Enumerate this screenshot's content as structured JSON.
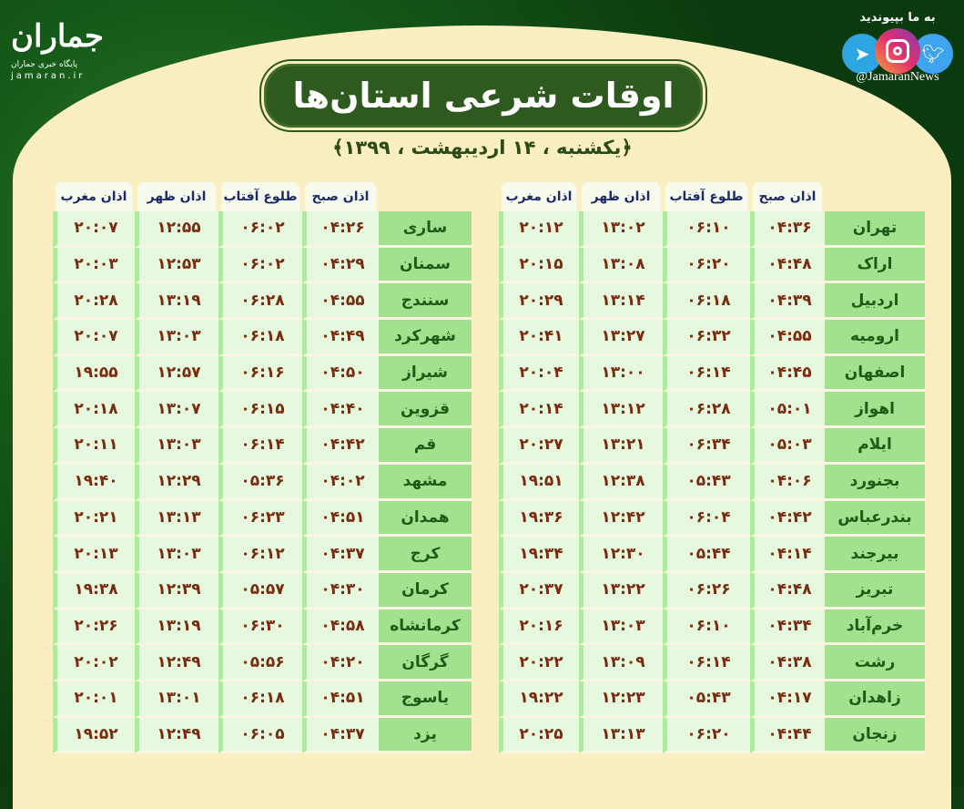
{
  "logo": {
    "mark": "جماران",
    "subtitle": "پایگاه خبری جماران",
    "url": "jamaran.ir"
  },
  "social": {
    "join": "به ما بپیوندید",
    "handle": "@JamaranNews",
    "icons": [
      "telegram-icon",
      "instagram-icon",
      "twitter-icon"
    ]
  },
  "title": "اوقات شرعی استان‌ها",
  "subtitle": "﴿یکشنبه ، ۱۴ اردیبهشت ، ۱۳۹۹﴾",
  "headers": [
    "اذان صبح",
    "طلوع آفتاب",
    "اذان ظهر",
    "اذان مغرب"
  ],
  "colors": {
    "background": "#0f3d12",
    "panel": "#fbeec0",
    "title_bg": "#2f5a1f",
    "city_bg": "#a2e28f",
    "cell_bg": "#e6f9de",
    "time_text": "#7a2b0f",
    "header_text": "#1b2a6e"
  },
  "right_table": [
    {
      "city": "تهران",
      "fajr": "۰۴:۳۶",
      "sunrise": "۰۶:۱۰",
      "dhuhr": "۱۳:۰۲",
      "maghrib": "۲۰:۱۲"
    },
    {
      "city": "اراک",
      "fajr": "۰۴:۴۸",
      "sunrise": "۰۶:۲۰",
      "dhuhr": "۱۳:۰۸",
      "maghrib": "۲۰:۱۵"
    },
    {
      "city": "اردبیل",
      "fajr": "۰۴:۳۹",
      "sunrise": "۰۶:۱۸",
      "dhuhr": "۱۳:۱۴",
      "maghrib": "۲۰:۲۹"
    },
    {
      "city": "ارومیه",
      "fajr": "۰۴:۵۵",
      "sunrise": "۰۶:۳۲",
      "dhuhr": "۱۳:۲۷",
      "maghrib": "۲۰:۴۱"
    },
    {
      "city": "اصفهان",
      "fajr": "۰۴:۴۵",
      "sunrise": "۰۶:۱۴",
      "dhuhr": "۱۳:۰۰",
      "maghrib": "۲۰:۰۴"
    },
    {
      "city": "اهواز",
      "fajr": "۰۵:۰۱",
      "sunrise": "۰۶:۲۸",
      "dhuhr": "۱۳:۱۲",
      "maghrib": "۲۰:۱۴"
    },
    {
      "city": "ایلام",
      "fajr": "۰۵:۰۳",
      "sunrise": "۰۶:۳۴",
      "dhuhr": "۱۳:۲۱",
      "maghrib": "۲۰:۲۷"
    },
    {
      "city": "بجنورد",
      "fajr": "۰۴:۰۶",
      "sunrise": "۰۵:۴۳",
      "dhuhr": "۱۲:۳۸",
      "maghrib": "۱۹:۵۱"
    },
    {
      "city": "بندرعباس",
      "fajr": "۰۴:۴۲",
      "sunrise": "۰۶:۰۴",
      "dhuhr": "۱۲:۴۲",
      "maghrib": "۱۹:۳۶"
    },
    {
      "city": "بیرجند",
      "fajr": "۰۴:۱۴",
      "sunrise": "۰۵:۴۴",
      "dhuhr": "۱۲:۳۰",
      "maghrib": "۱۹:۳۴"
    },
    {
      "city": "تبریز",
      "fajr": "۰۴:۴۸",
      "sunrise": "۰۶:۲۶",
      "dhuhr": "۱۳:۲۲",
      "maghrib": "۲۰:۳۷"
    },
    {
      "city": "خرم‌آباد",
      "fajr": "۰۴:۳۴",
      "sunrise": "۰۶:۱۰",
      "dhuhr": "۱۳:۰۳",
      "maghrib": "۲۰:۱۶"
    },
    {
      "city": "رشت",
      "fajr": "۰۴:۳۸",
      "sunrise": "۰۶:۱۴",
      "dhuhr": "۱۳:۰۹",
      "maghrib": "۲۰:۲۲"
    },
    {
      "city": "زاهدان",
      "fajr": "۰۴:۱۷",
      "sunrise": "۰۵:۴۳",
      "dhuhr": "۱۲:۲۳",
      "maghrib": "۱۹:۲۲"
    },
    {
      "city": "زنجان",
      "fajr": "۰۴:۴۴",
      "sunrise": "۰۶:۲۰",
      "dhuhr": "۱۳:۱۳",
      "maghrib": "۲۰:۲۵"
    }
  ],
  "left_table": [
    {
      "city": "ساری",
      "fajr": "۰۴:۲۶",
      "sunrise": "۰۶:۰۲",
      "dhuhr": "۱۲:۵۵",
      "maghrib": "۲۰:۰۷"
    },
    {
      "city": "سمنان",
      "fajr": "۰۴:۲۹",
      "sunrise": "۰۶:۰۲",
      "dhuhr": "۱۲:۵۳",
      "maghrib": "۲۰:۰۳"
    },
    {
      "city": "سنندج",
      "fajr": "۰۴:۵۵",
      "sunrise": "۰۶:۲۸",
      "dhuhr": "۱۳:۱۹",
      "maghrib": "۲۰:۲۸"
    },
    {
      "city": "شهرکرد",
      "fajr": "۰۴:۴۹",
      "sunrise": "۰۶:۱۸",
      "dhuhr": "۱۳:۰۳",
      "maghrib": "۲۰:۰۷"
    },
    {
      "city": "شیراز",
      "fajr": "۰۴:۵۰",
      "sunrise": "۰۶:۱۶",
      "dhuhr": "۱۲:۵۷",
      "maghrib": "۱۹:۵۵"
    },
    {
      "city": "قزوین",
      "fajr": "۰۴:۴۰",
      "sunrise": "۰۶:۱۵",
      "dhuhr": "۱۳:۰۷",
      "maghrib": "۲۰:۱۸"
    },
    {
      "city": "قم",
      "fajr": "۰۴:۴۲",
      "sunrise": "۰۶:۱۴",
      "dhuhr": "۱۳:۰۳",
      "maghrib": "۲۰:۱۱"
    },
    {
      "city": "مشهد",
      "fajr": "۰۴:۰۲",
      "sunrise": "۰۵:۳۶",
      "dhuhr": "۱۲:۲۹",
      "maghrib": "۱۹:۴۰"
    },
    {
      "city": "همدان",
      "fajr": "۰۴:۵۱",
      "sunrise": "۰۶:۲۳",
      "dhuhr": "۱۳:۱۳",
      "maghrib": "۲۰:۲۱"
    },
    {
      "city": "کرج",
      "fajr": "۰۴:۳۷",
      "sunrise": "۰۶:۱۲",
      "dhuhr": "۱۳:۰۳",
      "maghrib": "۲۰:۱۳"
    },
    {
      "city": "کرمان",
      "fajr": "۰۴:۳۰",
      "sunrise": "۰۵:۵۷",
      "dhuhr": "۱۲:۳۹",
      "maghrib": "۱۹:۳۸"
    },
    {
      "city": "کرمانشاه",
      "fajr": "۰۴:۵۸",
      "sunrise": "۰۶:۳۰",
      "dhuhr": "۱۳:۱۹",
      "maghrib": "۲۰:۲۶"
    },
    {
      "city": "گرگان",
      "fajr": "۰۴:۲۰",
      "sunrise": "۰۵:۵۶",
      "dhuhr": "۱۲:۴۹",
      "maghrib": "۲۰:۰۲"
    },
    {
      "city": "یاسوج",
      "fajr": "۰۴:۵۱",
      "sunrise": "۰۶:۱۸",
      "dhuhr": "۱۳:۰۱",
      "maghrib": "۲۰:۰۱"
    },
    {
      "city": "یزد",
      "fajr": "۰۴:۳۷",
      "sunrise": "۰۶:۰۵",
      "dhuhr": "۱۲:۴۹",
      "maghrib": "۱۹:۵۲"
    }
  ]
}
